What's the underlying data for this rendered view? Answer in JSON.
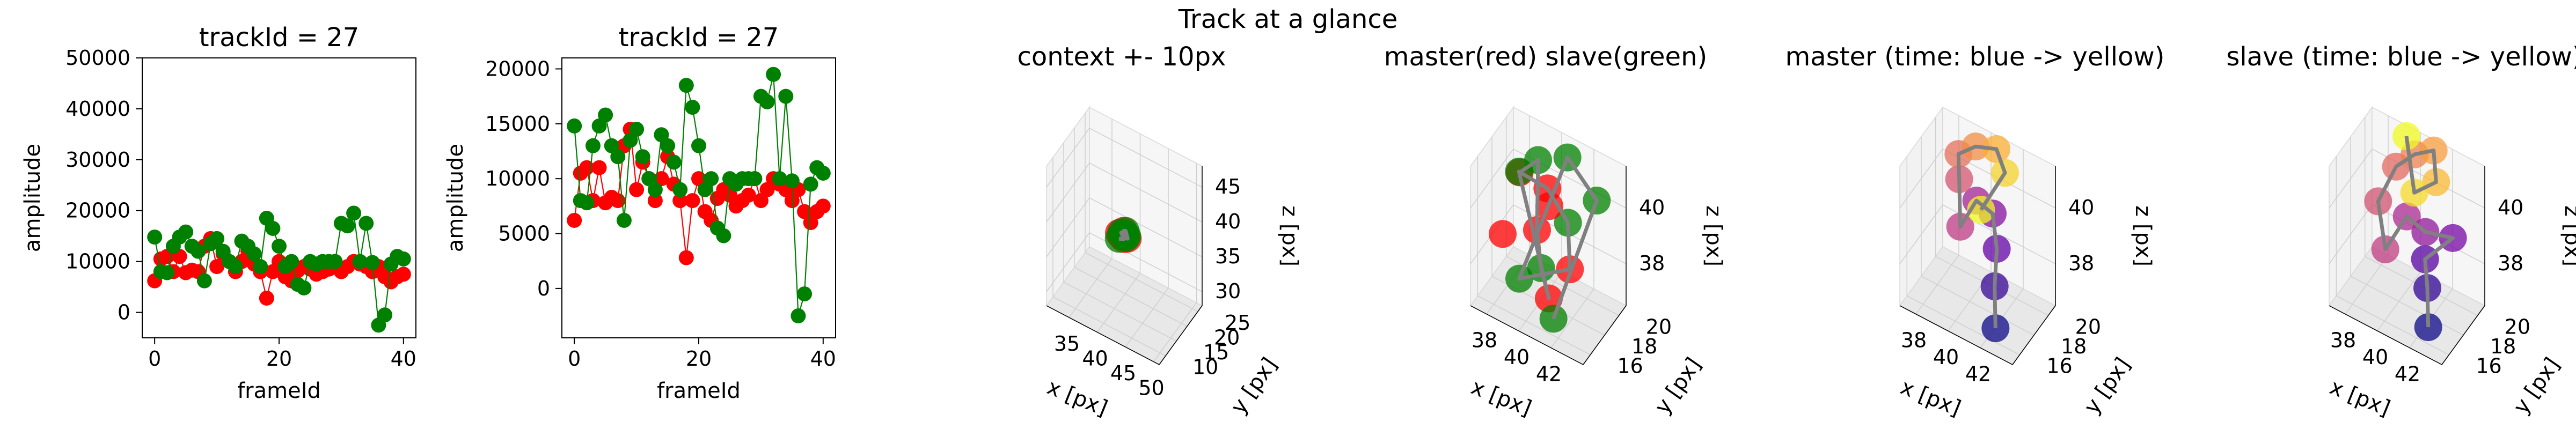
{
  "figure": {
    "suptitle": "Track at a glance"
  },
  "colors": {
    "master": "#ff0000",
    "slave": "#008000",
    "link": "#808080",
    "pane": "#f2f2f2"
  },
  "chart_data": [
    {
      "type": "line",
      "title": "trackId = 27",
      "xlabel": "frameId",
      "ylabel": "amplitude",
      "xlim": [
        -2,
        42
      ],
      "ylim": [
        -5000,
        50000
      ],
      "xticks": [
        0,
        20,
        40
      ],
      "yticks": [
        0,
        10000,
        20000,
        30000,
        40000,
        50000
      ],
      "x": [
        0,
        1,
        2,
        3,
        4,
        5,
        6,
        7,
        8,
        9,
        10,
        11,
        12,
        13,
        14,
        15,
        16,
        17,
        18,
        19,
        20,
        21,
        22,
        23,
        24,
        25,
        26,
        27,
        28,
        29,
        30,
        31,
        32,
        33,
        34,
        35,
        36,
        37,
        38,
        39,
        40
      ],
      "series": [
        {
          "key": "master",
          "values": [
            6200,
            10500,
            11000,
            8000,
            11000,
            7800,
            8300,
            8000,
            13000,
            14500,
            9000,
            11500,
            10000,
            8000,
            10000,
            12000,
            9500,
            8000,
            2800,
            8000,
            10000,
            7000,
            6200,
            8200,
            9000,
            8500,
            7500,
            8000,
            8500,
            10000,
            8000,
            9000,
            10000,
            9500,
            9000,
            8000,
            9000,
            7000,
            6000,
            7000,
            7500
          ]
        },
        {
          "key": "slave",
          "values": [
            14800,
            8000,
            7800,
            13000,
            14800,
            15800,
            13000,
            12000,
            6200,
            13500,
            14500,
            12000,
            10000,
            9000,
            14000,
            13000,
            11500,
            9000,
            18500,
            16500,
            13000,
            9000,
            10000,
            5500,
            4800,
            10000,
            9500,
            10000,
            10000,
            10000,
            17500,
            17000,
            19500,
            10000,
            17500,
            9800,
            -2500,
            -500,
            9500,
            11000,
            10500
          ]
        }
      ]
    },
    {
      "type": "line",
      "title": "trackId = 27",
      "xlabel": "frameId",
      "ylabel": "amplitude",
      "xlim": [
        -2,
        42
      ],
      "ylim": [
        -4500,
        21000
      ],
      "xticks": [
        0,
        20,
        40
      ],
      "yticks": [
        0,
        5000,
        10000,
        15000,
        20000
      ],
      "x": [
        0,
        1,
        2,
        3,
        4,
        5,
        6,
        7,
        8,
        9,
        10,
        11,
        12,
        13,
        14,
        15,
        16,
        17,
        18,
        19,
        20,
        21,
        22,
        23,
        24,
        25,
        26,
        27,
        28,
        29,
        30,
        31,
        32,
        33,
        34,
        35,
        36,
        37,
        38,
        39,
        40
      ],
      "series": [
        {
          "key": "master",
          "values": [
            6200,
            10500,
            11000,
            8000,
            11000,
            7800,
            8300,
            8000,
            13000,
            14500,
            9000,
            11500,
            10000,
            8000,
            10000,
            12000,
            9500,
            8000,
            2800,
            8000,
            10000,
            7000,
            6200,
            8200,
            9000,
            8500,
            7500,
            8000,
            8500,
            10000,
            8000,
            9000,
            10000,
            9500,
            9000,
            8000,
            9000,
            7000,
            6000,
            7000,
            7500
          ]
        },
        {
          "key": "slave",
          "values": [
            14800,
            8000,
            7800,
            13000,
            14800,
            15800,
            13000,
            12000,
            6200,
            13500,
            14500,
            12000,
            10000,
            9000,
            14000,
            13000,
            11500,
            9000,
            18500,
            16500,
            13000,
            9000,
            10000,
            5500,
            4800,
            10000,
            9500,
            10000,
            10000,
            10000,
            17500,
            17000,
            19500,
            10000,
            17500,
            9800,
            -2500,
            -500,
            9500,
            11000,
            10500
          ]
        }
      ]
    },
    {
      "type": "scatter",
      "title": "context +- 10px",
      "xlabel": "x [px]",
      "ylabel": "y [px]",
      "zlabel": "z [px]",
      "xlim": [
        31,
        51
      ],
      "ylim": [
        7,
        27
      ],
      "zlim": [
        28,
        48
      ],
      "xticks": [
        35,
        40,
        45,
        50
      ],
      "yticks": [
        10,
        15,
        20,
        25
      ],
      "zticks": [
        30,
        35,
        40,
        45
      ],
      "points": [
        [
          40.2,
          17.5,
          37.5,
          "master"
        ],
        [
          40.8,
          17.2,
          37.9,
          "master"
        ],
        [
          41.3,
          17.8,
          37.4,
          "master"
        ],
        [
          40.5,
          18.0,
          38.1,
          "master"
        ],
        [
          41.0,
          16.9,
          37.6,
          "master"
        ],
        [
          39.9,
          17.4,
          37.8,
          "master"
        ],
        [
          40.4,
          17.1,
          38.2,
          "slave"
        ],
        [
          41.1,
          17.6,
          37.5,
          "slave"
        ],
        [
          40.7,
          18.2,
          37.7,
          "slave"
        ],
        [
          41.4,
          17.3,
          38.0,
          "slave"
        ],
        [
          40.1,
          16.8,
          37.3,
          "slave"
        ],
        [
          40.9,
          17.9,
          38.3,
          "slave"
        ]
      ],
      "link_series": [
        [
          40.2,
          17.5,
          37.5
        ],
        [
          41.1,
          17.6,
          37.5
        ],
        [
          40.5,
          18.0,
          38.1
        ],
        [
          40.9,
          17.9,
          38.3
        ],
        [
          41.3,
          17.8,
          37.4
        ],
        [
          40.4,
          17.1,
          38.2
        ],
        [
          41.0,
          16.9,
          37.6
        ],
        [
          40.1,
          16.8,
          37.3
        ]
      ]
    },
    {
      "type": "scatter",
      "title": "master(red) slave(green)",
      "xlabel": "x [px]",
      "ylabel": "y [px]",
      "zlabel": "z [px]",
      "xlim": [
        37,
        44
      ],
      "ylim": [
        15,
        21
      ],
      "zlim": [
        36.5,
        41.5
      ],
      "xticks": [
        38,
        40,
        42
      ],
      "yticks": [
        16,
        18,
        20
      ],
      "zticks": [
        38,
        40
      ],
      "points": [
        [
          38.5,
          18.5,
          40.5,
          "master"
        ],
        [
          39.2,
          19.5,
          40.8,
          "slave"
        ],
        [
          39.8,
          18.0,
          39.0,
          "master"
        ],
        [
          40.5,
          17.0,
          38.2,
          "slave"
        ],
        [
          41.2,
          16.5,
          37.5,
          "master"
        ],
        [
          38.9,
          17.5,
          41.0,
          "slave"
        ],
        [
          40.0,
          19.0,
          40.2,
          "master"
        ],
        [
          41.5,
          18.5,
          39.6,
          "slave"
        ],
        [
          42.2,
          17.2,
          38.6,
          "master"
        ],
        [
          39.5,
          16.2,
          37.8,
          "slave"
        ],
        [
          40.8,
          20.0,
          41.2,
          "slave"
        ],
        [
          42.8,
          19.6,
          40.4,
          "slave"
        ],
        [
          38.2,
          16.8,
          38.8,
          "master"
        ],
        [
          41.8,
          15.8,
          37.2,
          "slave"
        ],
        [
          40.3,
          18.6,
          39.8,
          "master"
        ]
      ],
      "link_series": [
        [
          38.5,
          18.5,
          40.5
        ],
        [
          39.2,
          19.5,
          40.8
        ],
        [
          39.8,
          18.0,
          39.0
        ],
        [
          40.5,
          17.0,
          38.2
        ],
        [
          41.2,
          16.5,
          37.5
        ],
        [
          38.9,
          17.5,
          41.0
        ],
        [
          40.0,
          19.0,
          40.2
        ],
        [
          41.5,
          18.5,
          39.6
        ],
        [
          42.2,
          17.2,
          38.6
        ],
        [
          39.5,
          16.2,
          37.8
        ],
        [
          40.8,
          20.0,
          41.2
        ],
        [
          42.8,
          19.6,
          40.4
        ],
        [
          41.8,
          15.8,
          37.2
        ]
      ]
    },
    {
      "type": "scatter",
      "title": "master (time: blue -> yellow)",
      "xlabel": "x [px]",
      "ylabel": "y [px]",
      "zlabel": "z [px]",
      "xlim": [
        37,
        44
      ],
      "ylim": [
        15,
        21
      ],
      "zlim": [
        36.5,
        41.5
      ],
      "xticks": [
        38,
        40,
        42
      ],
      "yticks": [
        16,
        18,
        20
      ],
      "zticks": [
        38,
        40
      ],
      "colormap": [
        "#0d0887",
        "#6a00a8",
        "#b12a90",
        "#e16462",
        "#fca636",
        "#f0f921"
      ],
      "points": [
        [
          42.5,
          16.0,
          37.0
        ],
        [
          42.0,
          17.0,
          38.0
        ],
        [
          41.6,
          18.2,
          38.8
        ],
        [
          40.9,
          19.2,
          39.5
        ],
        [
          40.2,
          18.5,
          40.0
        ],
        [
          39.6,
          17.6,
          39.2
        ],
        [
          39.0,
          18.8,
          40.3
        ],
        [
          38.6,
          19.6,
          40.8
        ],
        [
          39.4,
          20.2,
          41.1
        ],
        [
          40.6,
          20.4,
          41.3
        ],
        [
          41.4,
          19.8,
          40.9
        ],
        [
          40.8,
          17.8,
          40.1
        ]
      ],
      "link_series": [
        [
          42.5,
          16.0,
          37.0
        ],
        [
          42.0,
          17.0,
          38.0
        ],
        [
          41.6,
          18.2,
          38.8
        ],
        [
          40.9,
          19.2,
          39.5
        ],
        [
          40.2,
          18.5,
          40.0
        ],
        [
          39.6,
          17.6,
          39.2
        ],
        [
          39.0,
          18.8,
          40.3
        ],
        [
          38.6,
          19.6,
          40.8
        ],
        [
          39.4,
          20.2,
          41.1
        ],
        [
          40.6,
          20.4,
          41.3
        ],
        [
          41.4,
          19.8,
          40.9
        ],
        [
          40.8,
          17.8,
          40.1
        ]
      ]
    },
    {
      "type": "scatter",
      "title": "slave (time: blue -> yellow)",
      "xlabel": "x [px]",
      "ylabel": "y [px]",
      "zlabel": "z [px]",
      "xlim": [
        37,
        44
      ],
      "ylim": [
        15,
        21
      ],
      "zlim": [
        36.5,
        41.5
      ],
      "xticks": [
        38,
        40,
        42
      ],
      "yticks": [
        16,
        18,
        20
      ],
      "zticks": [
        38,
        40
      ],
      "colormap": [
        "#0d0887",
        "#6a00a8",
        "#b12a90",
        "#e16462",
        "#fca636",
        "#f0f921"
      ],
      "points": [
        [
          42.8,
          15.8,
          37.2
        ],
        [
          42.3,
          16.8,
          38.1
        ],
        [
          41.8,
          17.6,
          38.7
        ],
        [
          43.0,
          18.8,
          39.4
        ],
        [
          41.2,
          19.0,
          39.0
        ],
        [
          40.4,
          18.2,
          39.6
        ],
        [
          39.6,
          17.0,
          38.6
        ],
        [
          38.8,
          17.8,
          39.8
        ],
        [
          39.2,
          19.4,
          40.6
        ],
        [
          40.0,
          20.2,
          41.0
        ],
        [
          41.0,
          20.6,
          41.3
        ],
        [
          41.6,
          19.6,
          40.7
        ],
        [
          40.6,
          18.8,
          40.3
        ],
        [
          39.4,
          20.4,
          41.4
        ]
      ],
      "link_series": [
        [
          42.8,
          15.8,
          37.2
        ],
        [
          42.3,
          16.8,
          38.1
        ],
        [
          41.8,
          17.6,
          38.7
        ],
        [
          43.0,
          18.8,
          39.4
        ],
        [
          41.2,
          19.0,
          39.0
        ],
        [
          40.4,
          18.2,
          39.6
        ],
        [
          39.6,
          17.0,
          38.6
        ],
        [
          38.8,
          17.8,
          39.8
        ],
        [
          39.2,
          19.4,
          40.6
        ],
        [
          40.0,
          20.2,
          41.0
        ],
        [
          41.0,
          20.6,
          41.3
        ],
        [
          41.6,
          19.6,
          40.7
        ],
        [
          40.6,
          18.8,
          40.3
        ],
        [
          39.4,
          20.4,
          41.4
        ]
      ]
    }
  ]
}
